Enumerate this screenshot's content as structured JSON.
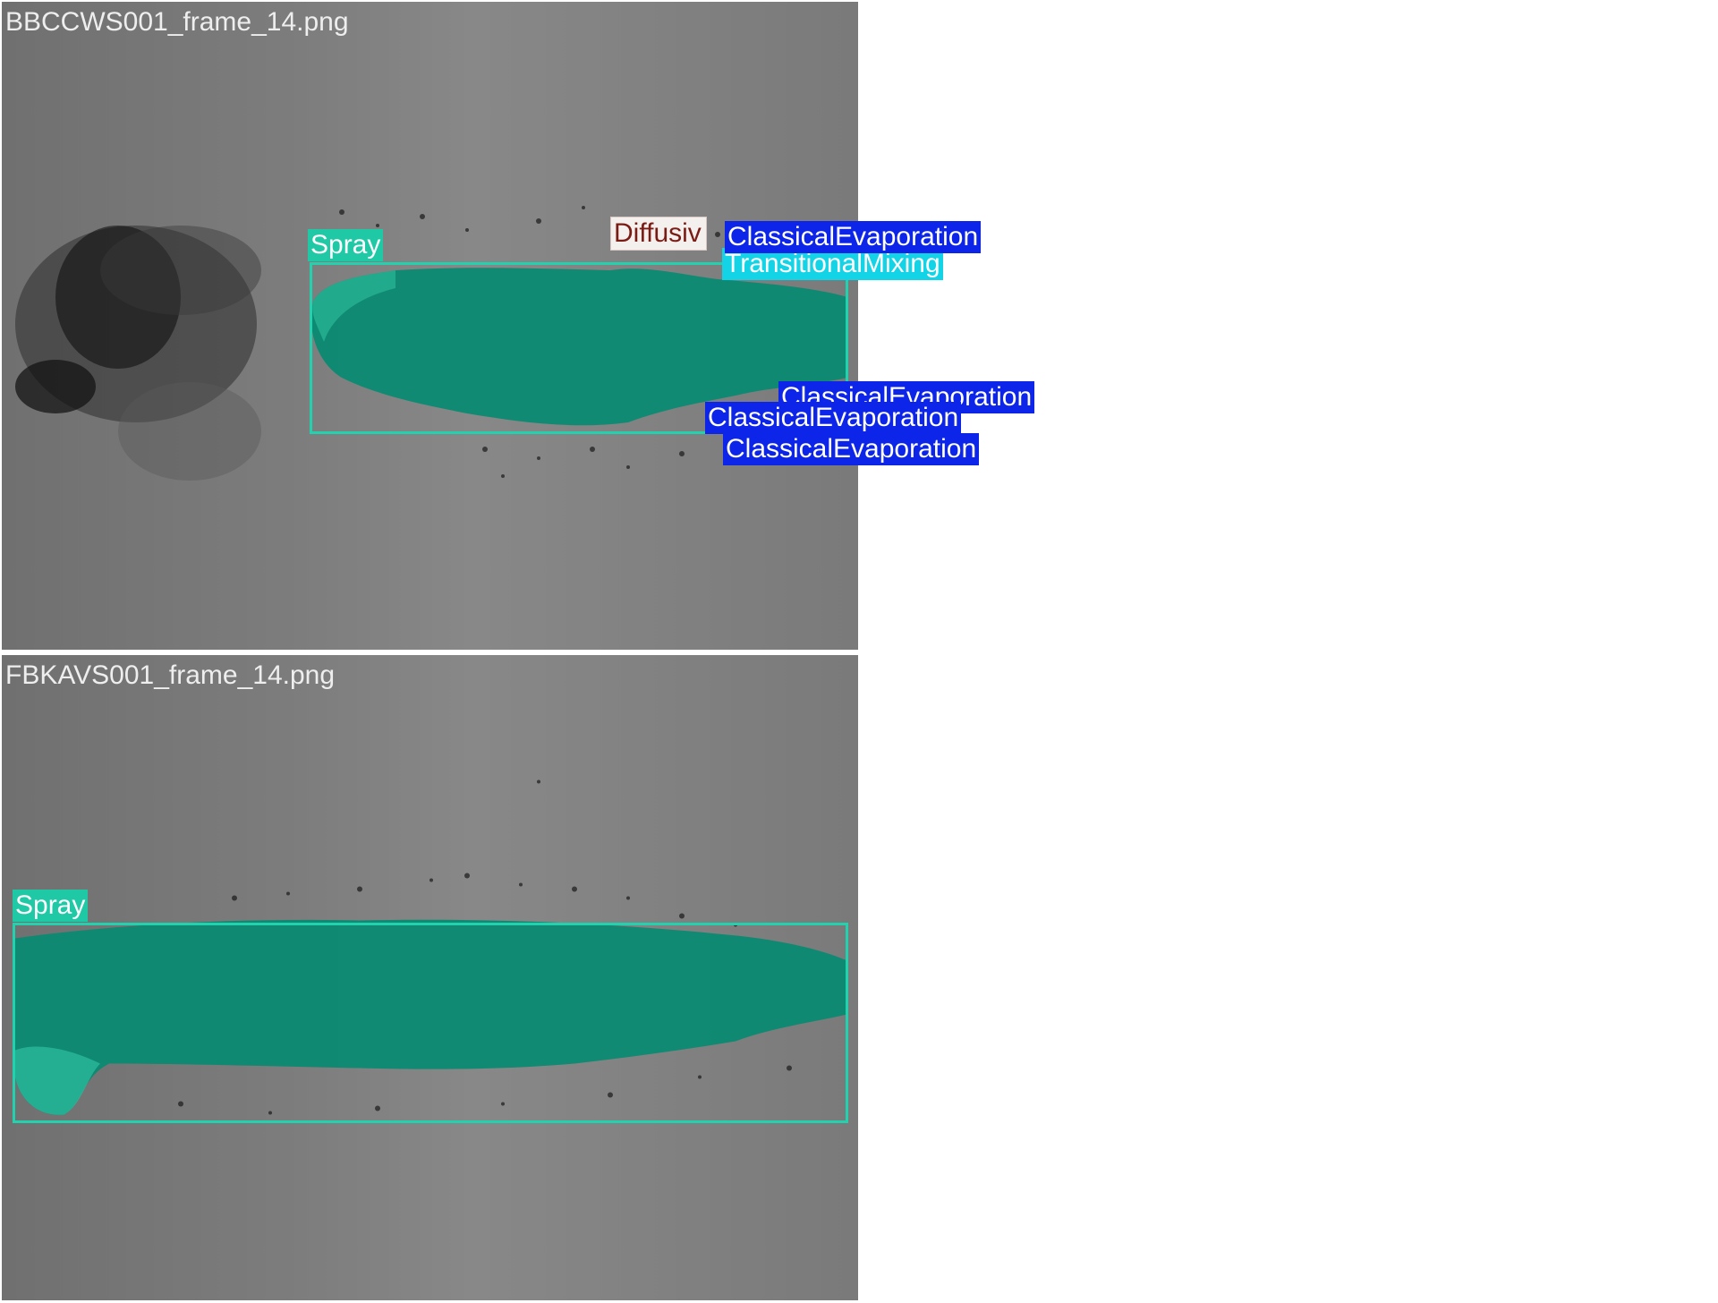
{
  "panels": [
    {
      "filename": "BBCCWS001_frame_14.png",
      "labels": {
        "spray": "Spray",
        "diffusive": "Diffusiv",
        "evap1": "ClassicalEvaporation",
        "mix1": "TransitionalMixing",
        "evap2": "ClassicalEvaporation",
        "evap3": "ClassicalEvaporation",
        "evap4": "ClassicalEvaporation"
      }
    },
    {
      "filename": "FBKAVS001_frame_14.png",
      "labels": {
        "spray": "Spray"
      }
    }
  ],
  "colors": {
    "spray": "#20c9a6",
    "spray_mask": "#0a8a72",
    "evaporation": "#0c25e8",
    "mixing": "#12d4e6",
    "diffusive_text": "#7a1b14",
    "background": "#7b7b7b"
  }
}
